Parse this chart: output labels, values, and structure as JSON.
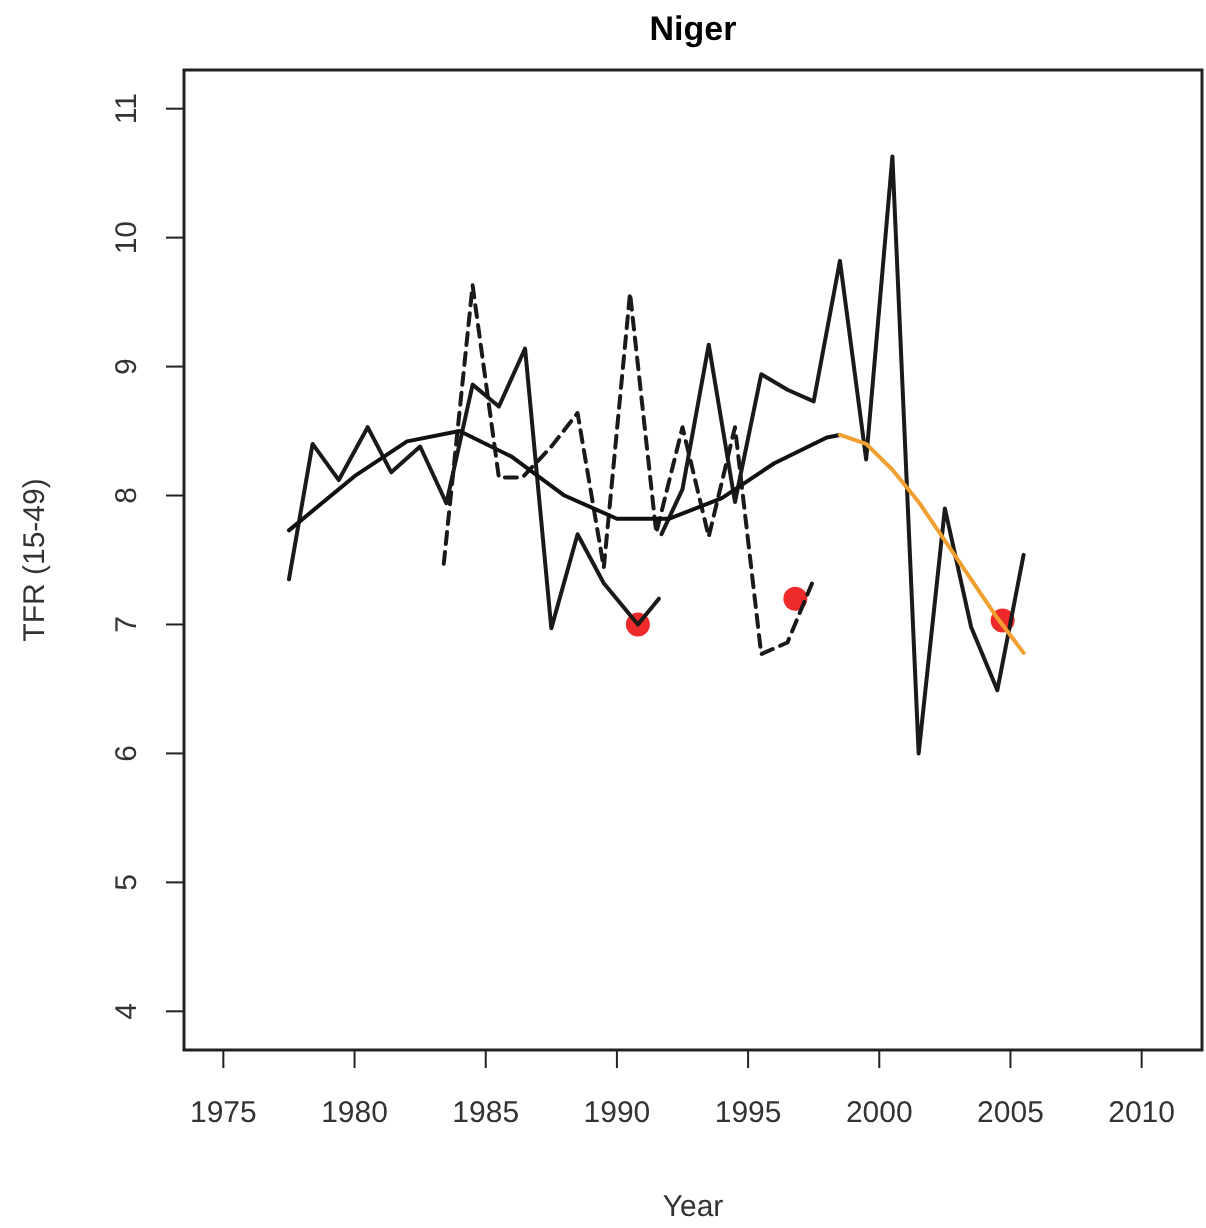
{
  "chart_data": {
    "type": "line",
    "title": "Niger",
    "xlabel": "Year",
    "ylabel": "TFR (15-49)",
    "xlim": [
      1973.5,
      2012.3
    ],
    "ylim": [
      3.7,
      11.3
    ],
    "xticks": [
      1975,
      1980,
      1985,
      1990,
      1995,
      2000,
      2005,
      2010
    ],
    "yticks": [
      4,
      5,
      6,
      7,
      8,
      9,
      10,
      11
    ],
    "grid": false,
    "series": [
      {
        "line_style": "solid",
        "color": "#1a1a1a",
        "x": [
          1977.5,
          1978.4,
          1979.4,
          1980.5,
          1981.4,
          1982.5,
          1983.5,
          1984.5,
          1985.5,
          1986.5,
          1987.5,
          1988.5,
          1989.5,
          1990.8,
          1991.6
        ],
        "values": [
          7.35,
          8.4,
          8.12,
          8.53,
          8.18,
          8.38,
          7.94,
          8.86,
          8.69,
          9.14,
          6.97,
          7.7,
          7.32,
          7.0,
          7.2
        ]
      },
      {
        "line_style": "solid",
        "color": "#1a1a1a",
        "x": [
          1991.7,
          1992.5,
          1993.5,
          1994.5,
          1995.5,
          1996.5,
          1997.5,
          1998.5,
          1999.5,
          2000.5,
          2001.5,
          2002.5,
          2003.5,
          2004.5,
          2005.5
        ],
        "values": [
          7.7,
          8.05,
          9.17,
          7.95,
          8.94,
          8.82,
          8.73,
          9.82,
          8.28,
          10.63,
          6.0,
          7.9,
          6.98,
          6.49,
          7.54
        ]
      },
      {
        "line_style": "dashed",
        "color": "#1a1a1a",
        "x": [
          1983.4,
          1984.5,
          1985.5,
          1986.4,
          1987.5,
          1988.5,
          1989.5,
          1990.5,
          1991.5,
          1992.5,
          1993.5,
          1994.5,
          1995.5,
          1996.5,
          1997.5
        ],
        "values": [
          7.47,
          9.63,
          8.14,
          8.14,
          8.38,
          8.64,
          7.44,
          9.57,
          7.71,
          8.53,
          7.68,
          8.53,
          6.77,
          6.86,
          7.35
        ]
      },
      {
        "line_style": "solid",
        "color": "#111111",
        "x": [
          1977.5,
          1980,
          1982,
          1984,
          1986,
          1988,
          1990,
          1992,
          1994,
          1996,
          1998,
          1998.5
        ],
        "values": [
          7.73,
          8.15,
          8.42,
          8.5,
          8.3,
          8.0,
          7.82,
          7.82,
          7.98,
          8.25,
          8.45,
          8.47
        ]
      },
      {
        "line_style": "solid",
        "color": "#f0a030",
        "x": [
          1998.5,
          1999.5,
          2000.5,
          2001.5,
          2002.5,
          2003.5,
          2004.5,
          2005.5
        ],
        "values": [
          8.47,
          8.4,
          8.2,
          7.95,
          7.65,
          7.35,
          7.05,
          6.78
        ]
      },
      {
        "type": "scatter",
        "marker": "circle",
        "color": "#ee2a2a",
        "x": [
          1990.8,
          1996.8,
          2004.7
        ],
        "values": [
          7.0,
          7.2,
          7.03
        ]
      }
    ]
  }
}
